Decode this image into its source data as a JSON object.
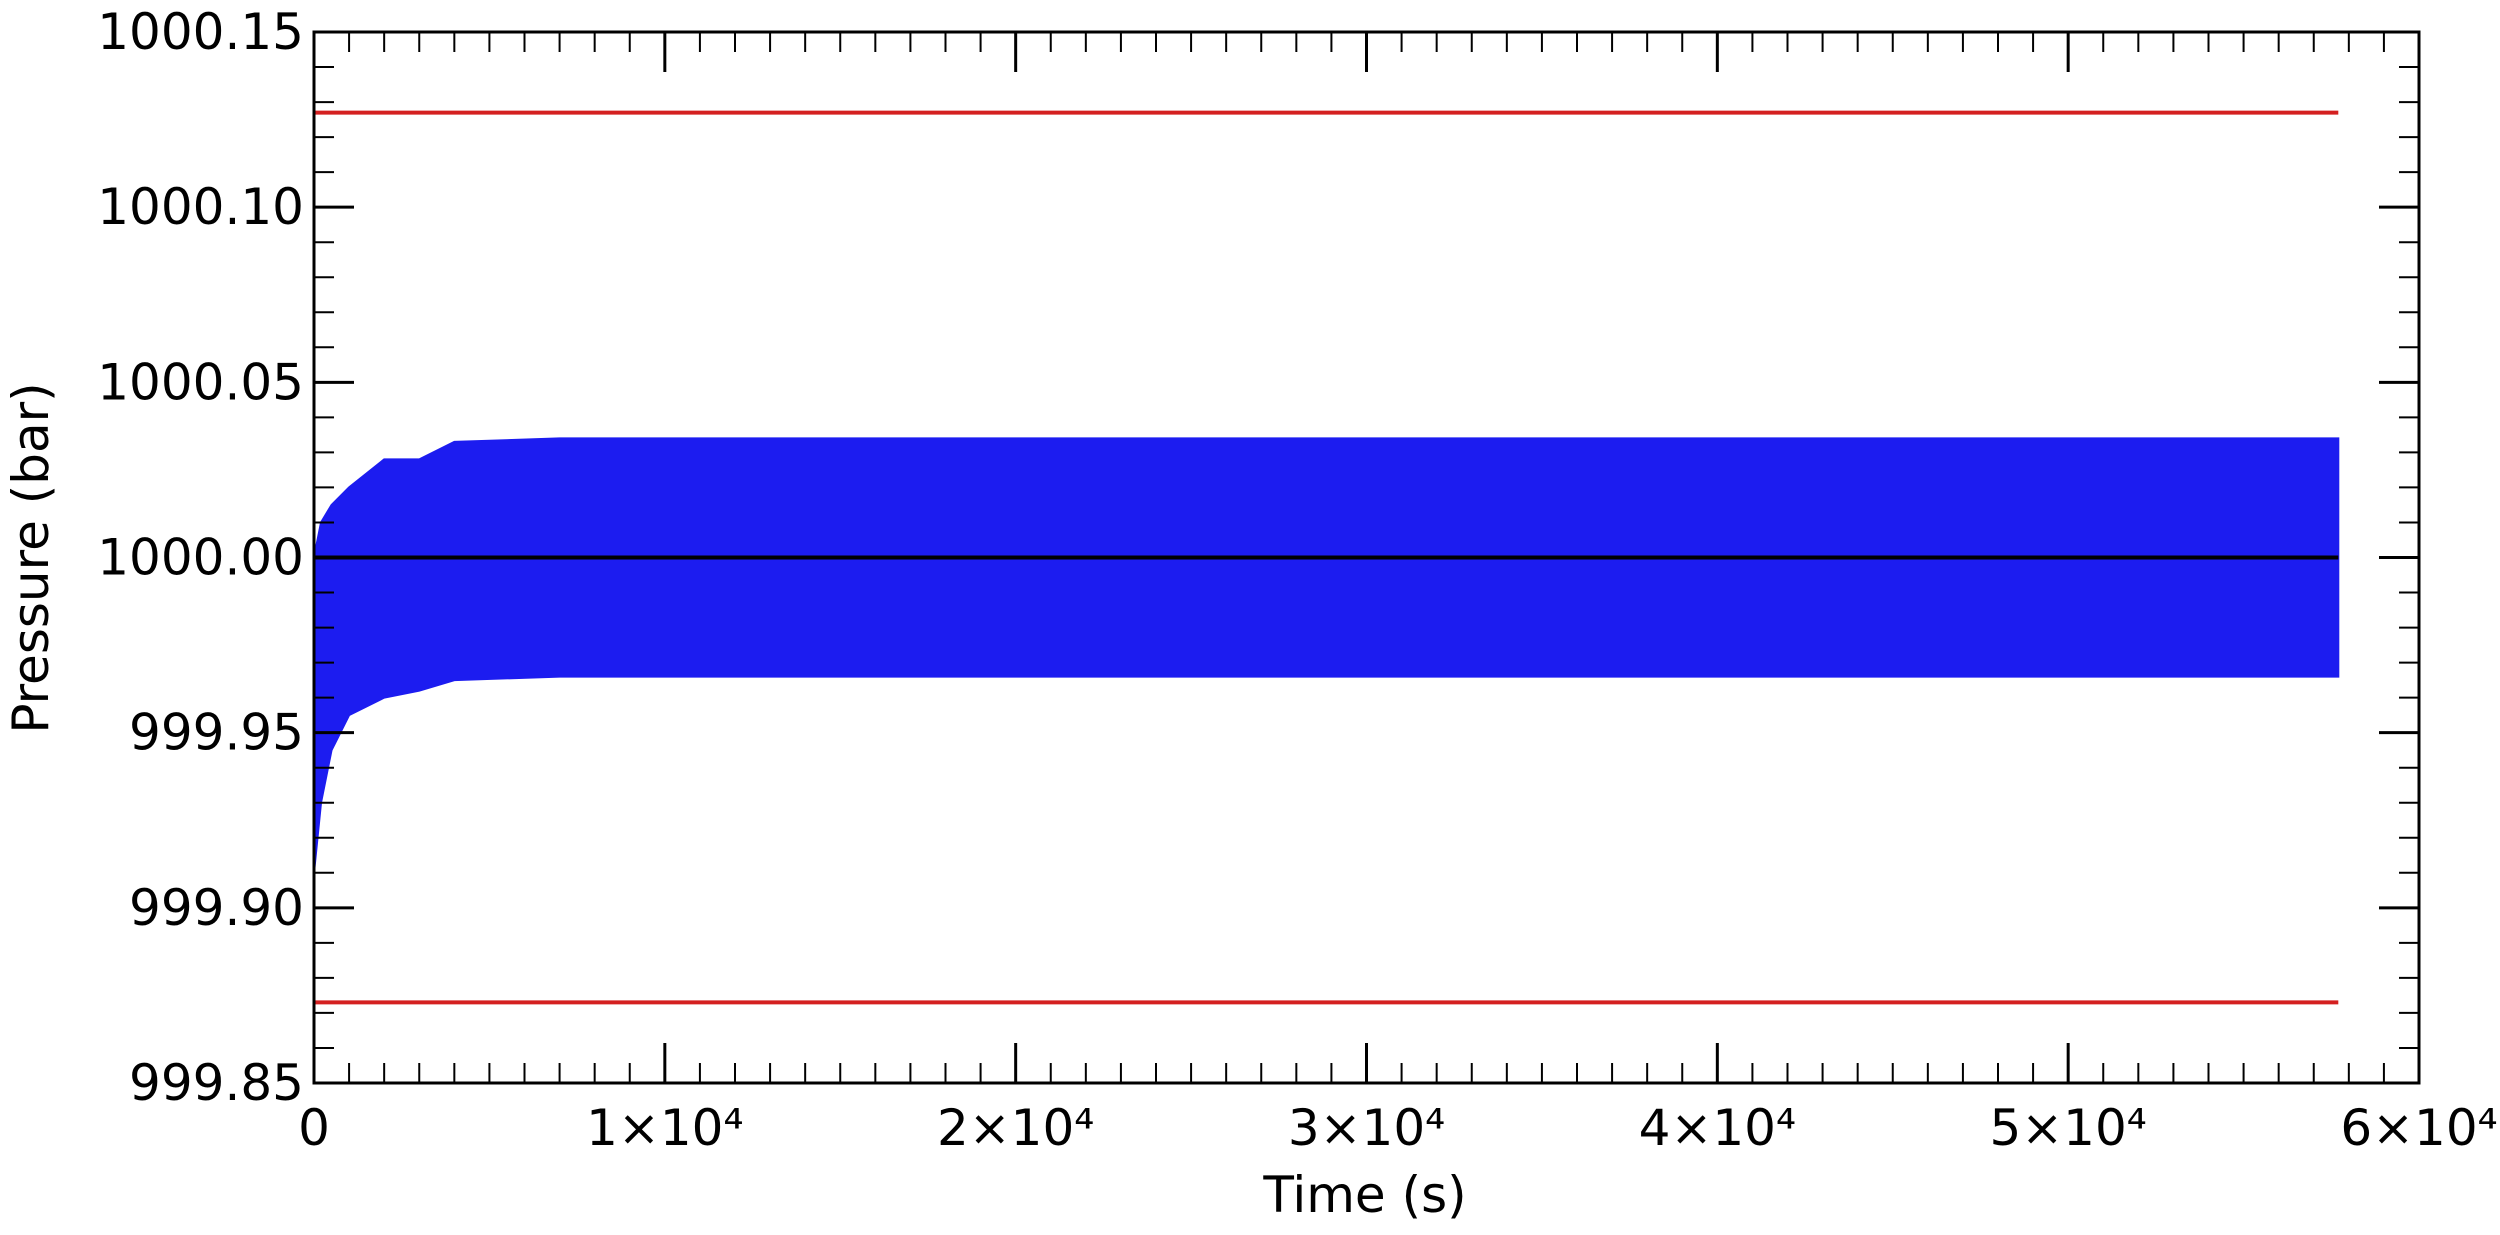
{
  "chart_data": {
    "type": "line",
    "xlabel": "Time (s)",
    "ylabel": "Pressure (bar)",
    "x": [
      0,
      200,
      500,
      1000,
      2000,
      3000,
      4000,
      7000,
      57700
    ],
    "series": [
      {
        "color": "#1c1cf0",
        "fill": true,
        "values": [
          1000.0,
          1000.01,
          1000.015,
          1000.02,
          1000.028,
          1000.028,
          1000.033,
          1000.034,
          1000.034
        ],
        "lower": [
          999.91,
          999.93,
          999.945,
          999.955,
          999.96,
          999.962,
          999.965,
          999.966,
          999.966
        ]
      },
      {
        "color": "#d42020",
        "values": [
          1000.127,
          1000.127,
          1000.127,
          1000.127,
          1000.127,
          1000.127,
          1000.127,
          1000.127,
          1000.127
        ]
      },
      {
        "color": "#d42020",
        "values": [
          999.873,
          999.873,
          999.873,
          999.873,
          999.873,
          999.873,
          999.873,
          999.873,
          999.873
        ]
      },
      {
        "color": "#000000",
        "values": [
          1000.0,
          1000.0,
          1000.0,
          1000.0,
          1000.0,
          1000.0,
          1000.0,
          1000.0,
          1000.0
        ]
      }
    ],
    "xlim": [
      0,
      60000
    ],
    "xticks": [
      0,
      {
        "value": 10000,
        "label": "1×10⁴"
      },
      {
        "value": 20000,
        "label": "2×10⁴"
      },
      {
        "value": 30000,
        "label": "3×10⁴"
      },
      {
        "value": 40000,
        "label": "4×10⁴"
      },
      {
        "value": 50000,
        "label": "5×10⁴"
      },
      {
        "value": 60000,
        "label": "6×10⁴"
      }
    ],
    "ylim": [
      999.85,
      1000.15
    ],
    "yticks": [
      999.85,
      {
        "value": 999.9,
        "label": "999.90"
      },
      999.95,
      {
        "value": 1000,
        "label": "1000.00"
      },
      1000.05,
      {
        "value": 1000.1,
        "label": "1000.10"
      },
      1000.15
    ],
    "grid": false
  }
}
